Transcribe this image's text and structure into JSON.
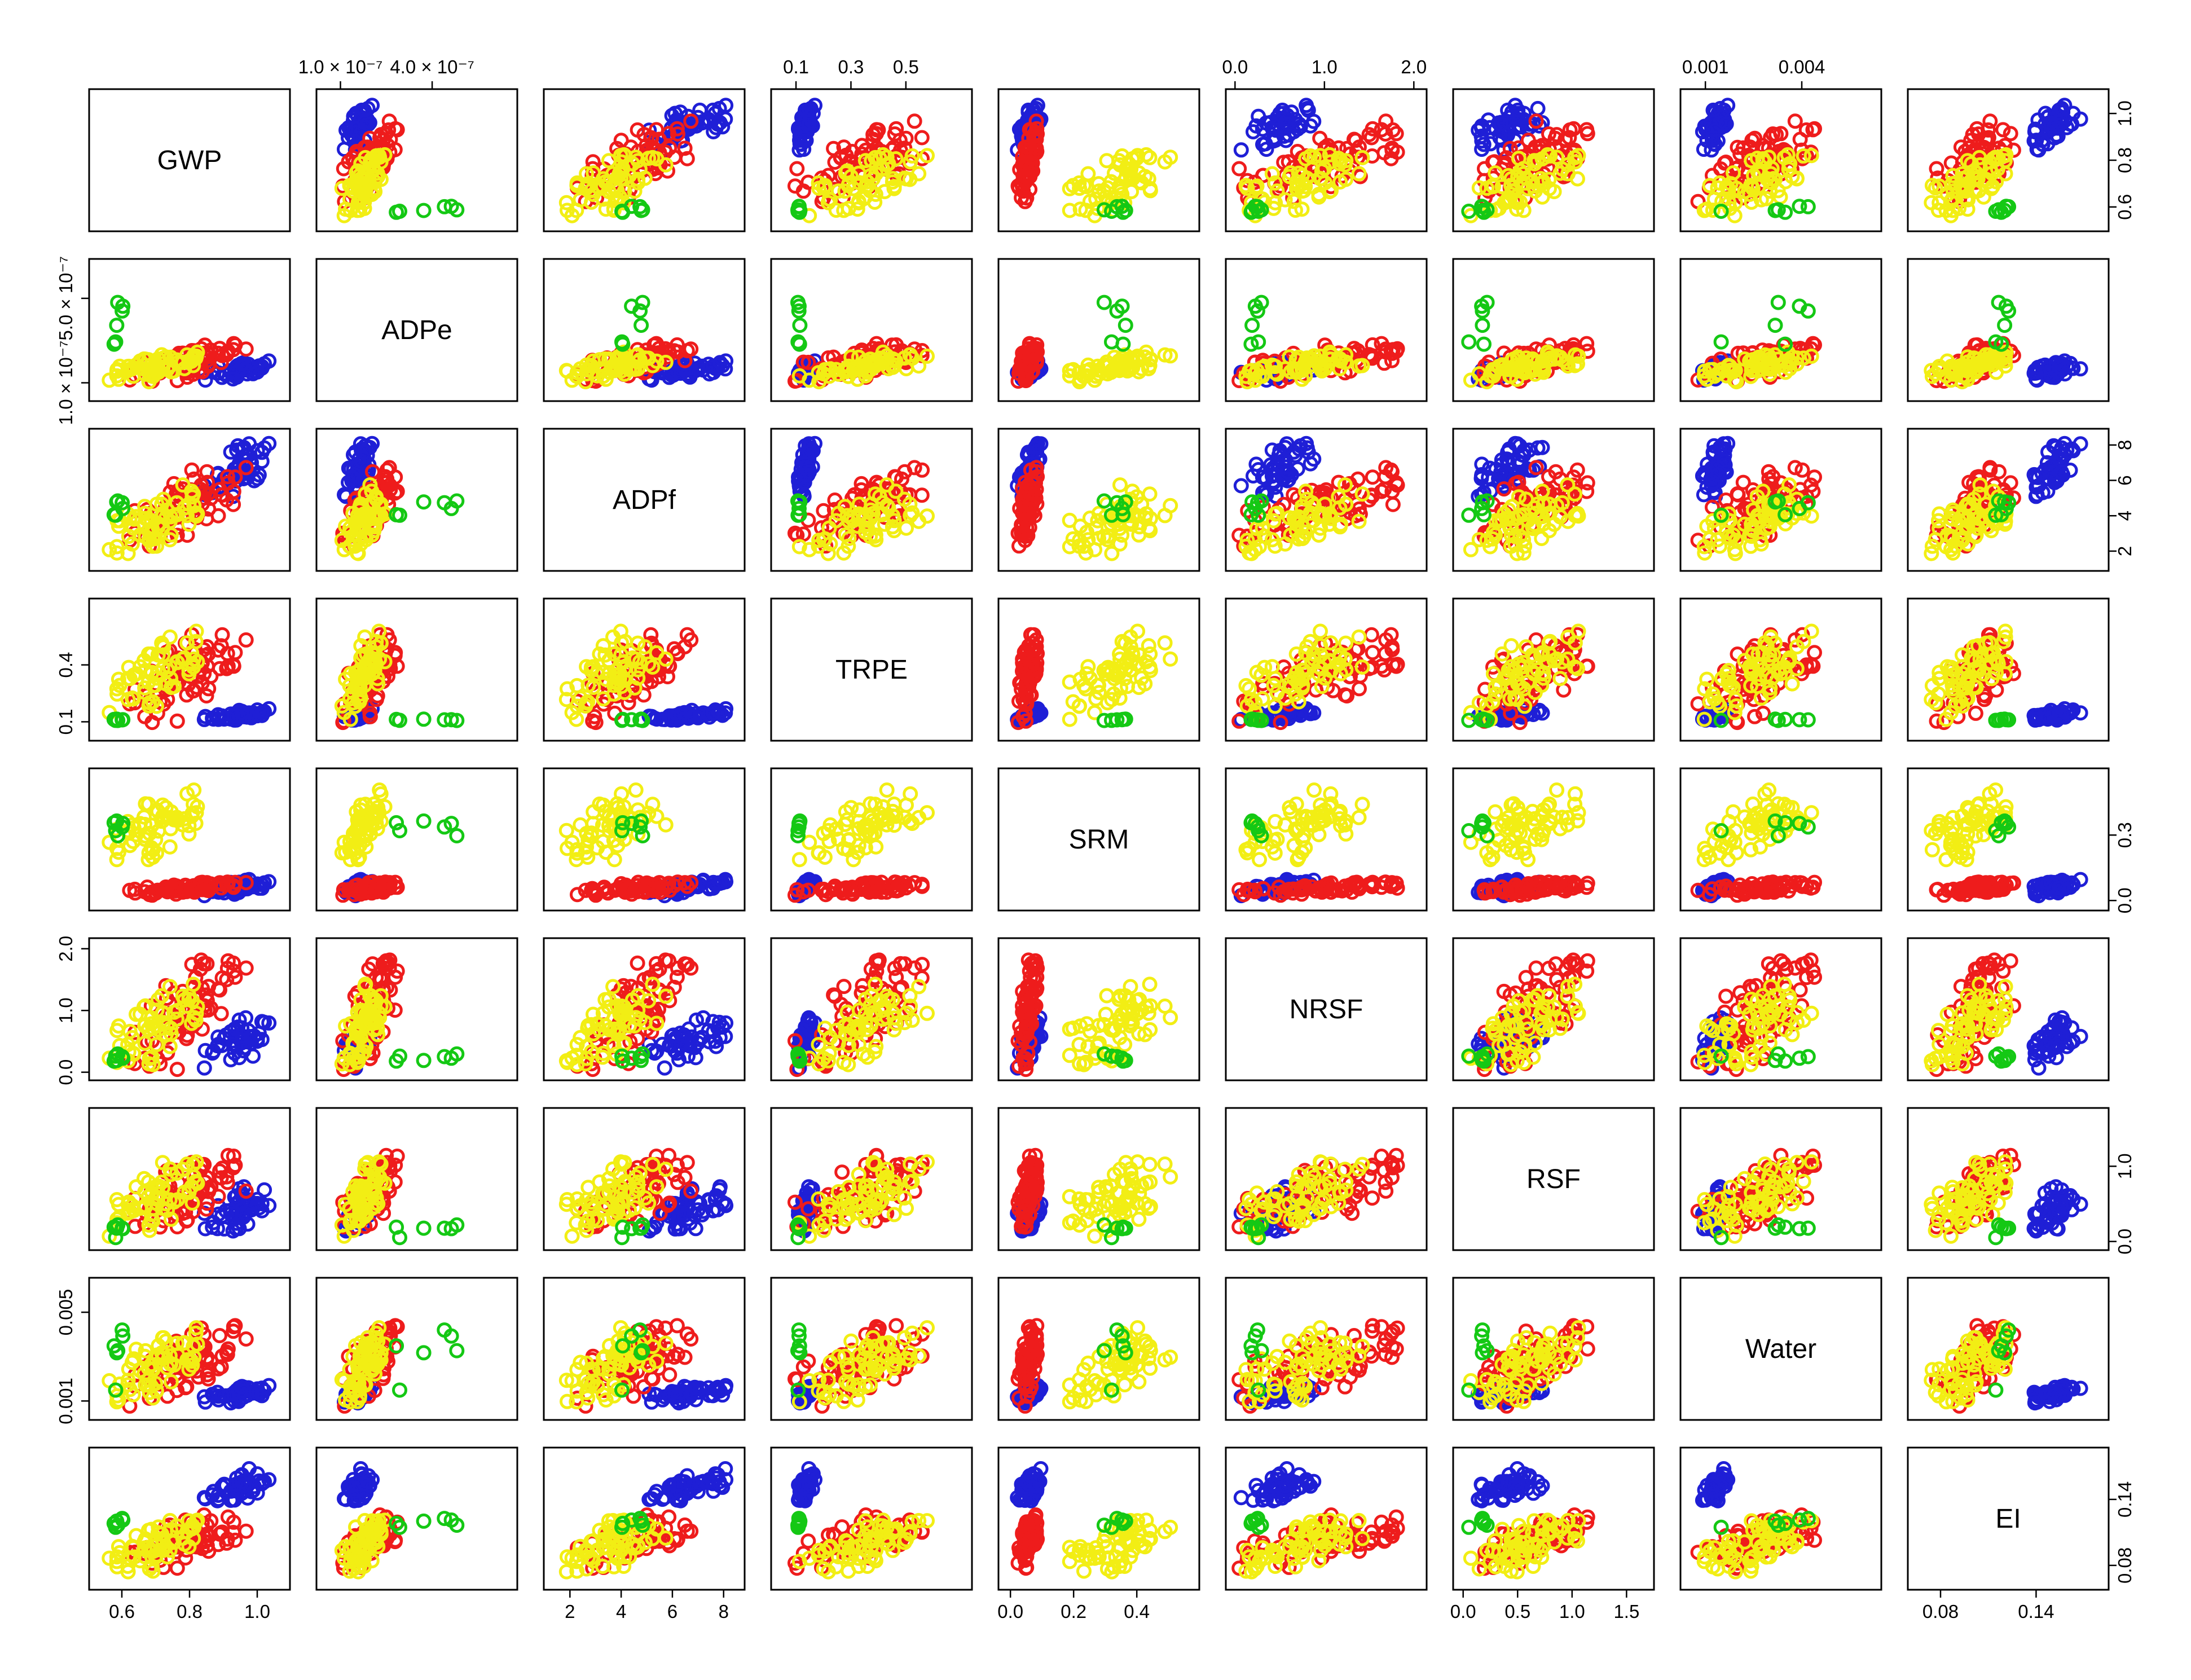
{
  "chart_data": {
    "type": "scatter",
    "variables": [
      "GWP",
      "ADPe",
      "ADPf",
      "TRPE",
      "SRM",
      "NRSF",
      "RSF",
      "Water",
      "EI"
    ],
    "diagonal_labels": [
      "GWP",
      "ADPe",
      "ADPf",
      "TRPE",
      "SRM",
      "NRSF",
      "RSF",
      "Water",
      "EI"
    ],
    "group_colors": {
      "blue": "#1f1fd6",
      "red": "#ee1c1c",
      "yellow": "#f2ee14",
      "green": "#14c814"
    },
    "ranges": {
      "GWP": [
        0.52,
        1.08
      ],
      "ADPe": [
        4e-08,
        6.6e-07
      ],
      "ADPf": [
        1.2,
        8.6
      ],
      "TRPE": [
        0.03,
        0.72
      ],
      "SRM": [
        -0.02,
        0.58
      ],
      "NRSF": [
        -0.04,
        2.08
      ],
      "RSF": [
        -0.04,
        1.7
      ],
      "Water": [
        0.0004,
        0.0063
      ],
      "EI": [
        0.063,
        0.182
      ]
    },
    "axis_ticks": {
      "GWP": [
        {
          "value": 0.6,
          "label": "0.6"
        },
        {
          "value": 0.8,
          "label": "0.8"
        },
        {
          "value": 1.0,
          "label": "1.0"
        }
      ],
      "ADPe_top": [
        {
          "value": 1e-07,
          "label": "1.0 × 10⁻⁷"
        },
        {
          "value": 4e-07,
          "label": "4.0 × 10⁻⁷"
        }
      ],
      "ADPe_left": [
        {
          "value": 1e-07,
          "label": "1.0 × 10⁻⁷"
        },
        {
          "value": 5e-07,
          "label": "5.0 × 10⁻⁷"
        }
      ],
      "ADPf": [
        {
          "value": 2,
          "label": "2"
        },
        {
          "value": 4,
          "label": "4"
        },
        {
          "value": 6,
          "label": "6"
        },
        {
          "value": 8,
          "label": "8"
        }
      ],
      "TRPE_top": [
        {
          "value": 0.1,
          "label": "0.1"
        },
        {
          "value": 0.3,
          "label": "0.3"
        },
        {
          "value": 0.5,
          "label": "0.5"
        }
      ],
      "TRPE_left": [
        {
          "value": 0.1,
          "label": "0.1"
        },
        {
          "value": 0.4,
          "label": "0.4"
        }
      ],
      "SRM_bottom": [
        {
          "value": 0.0,
          "label": "0.0"
        },
        {
          "value": 0.2,
          "label": "0.2"
        },
        {
          "value": 0.4,
          "label": "0.4"
        }
      ],
      "SRM_right": [
        {
          "value": 0.0,
          "label": "0.0"
        },
        {
          "value": 0.3,
          "label": "0.3"
        }
      ],
      "NRSF": [
        {
          "value": 0.0,
          "label": "0.0"
        },
        {
          "value": 1.0,
          "label": "1.0"
        },
        {
          "value": 2.0,
          "label": "2.0"
        }
      ],
      "RSF_bottom": [
        {
          "value": 0.0,
          "label": "0.0"
        },
        {
          "value": 0.5,
          "label": "0.5"
        },
        {
          "value": 1.0,
          "label": "1.0"
        },
        {
          "value": 1.5,
          "label": "1.5"
        }
      ],
      "RSF_right": [
        {
          "value": 0.0,
          "label": "0.0"
        },
        {
          "value": 1.0,
          "label": "1.0"
        }
      ],
      "Water_top": [
        {
          "value": 0.001,
          "label": "0.001"
        },
        {
          "value": 0.004,
          "label": "0.004"
        }
      ],
      "Water_left": [
        {
          "value": 0.001,
          "label": "0.001"
        },
        {
          "value": 0.005,
          "label": "0.005"
        }
      ],
      "EI_bottom": [
        {
          "value": 0.08,
          "label": "0.08"
        },
        {
          "value": 0.14,
          "label": "0.14"
        }
      ],
      "EI_right": [
        {
          "value": 0.08,
          "label": "0.08"
        },
        {
          "value": 0.14,
          "label": "0.14"
        }
      ],
      "GWP_right": [
        {
          "value": 0.6,
          "label": "0.6"
        },
        {
          "value": 0.8,
          "label": "0.8"
        },
        {
          "value": 1.0,
          "label": "1.0"
        }
      ],
      "ADPf_right": [
        {
          "value": 2,
          "label": "2"
        },
        {
          "value": 4,
          "label": "4"
        },
        {
          "value": 6,
          "label": "6"
        },
        {
          "value": 8,
          "label": "8"
        }
      ],
      "ADPf_bottom": [
        {
          "value": 2,
          "label": "2"
        },
        {
          "value": 4,
          "label": "4"
        },
        {
          "value": 6,
          "label": "6"
        },
        {
          "value": 8,
          "label": "8"
        }
      ],
      "NRSF_left": [
        {
          "value": 0.0,
          "label": "0.0"
        },
        {
          "value": 1.0,
          "label": "1.0"
        },
        {
          "value": 2.0,
          "label": "2.0"
        }
      ]
    },
    "axis_layout": {
      "top": [
        {
          "col": 1,
          "var": "ADPe",
          "ticks": "ADPe_top"
        },
        {
          "col": 3,
          "var": "TRPE",
          "ticks": "TRPE_top"
        },
        {
          "col": 5,
          "var": "NRSF",
          "ticks": "NRSF"
        },
        {
          "col": 7,
          "var": "Water",
          "ticks": "Water_top"
        }
      ],
      "bottom": [
        {
          "col": 0,
          "var": "GWP",
          "ticks": "GWP"
        },
        {
          "col": 2,
          "var": "ADPf",
          "ticks": "ADPf_bottom"
        },
        {
          "col": 4,
          "var": "SRM",
          "ticks": "SRM_bottom"
        },
        {
          "col": 6,
          "var": "RSF",
          "ticks": "RSF_bottom"
        },
        {
          "col": 8,
          "var": "EI",
          "ticks": "EI_bottom"
        }
      ],
      "left": [
        {
          "row": 1,
          "var": "ADPe",
          "ticks": "ADPe_left"
        },
        {
          "row": 3,
          "var": "TRPE",
          "ticks": "TRPE_left"
        },
        {
          "row": 5,
          "var": "NRSF",
          "ticks": "NRSF_left"
        },
        {
          "row": 7,
          "var": "Water",
          "ticks": "Water_left"
        }
      ],
      "right": [
        {
          "row": 0,
          "var": "GWP",
          "ticks": "GWP_right"
        },
        {
          "row": 2,
          "var": "ADPf",
          "ticks": "ADPf_right"
        },
        {
          "row": 4,
          "var": "SRM",
          "ticks": "SRM_right"
        },
        {
          "row": 6,
          "var": "RSF",
          "ticks": "RSF_right"
        },
        {
          "row": 8,
          "var": "EI",
          "ticks": "EI_right"
        }
      ]
    },
    "series": [
      {
        "color": "blue",
        "n": 50,
        "values": {
          "GWP": [
            0.82,
            1.06
          ],
          "ADPe": [
            1e-07,
            2.2e-07
          ],
          "ADPf": [
            4.8,
            8.4
          ],
          "TRPE": [
            0.1,
            0.17
          ],
          "SRM": [
            0.02,
            0.1
          ],
          "NRSF": [
            0.0,
            0.95
          ],
          "RSF": [
            0.0,
            0.8
          ],
          "Water": [
            0.0008,
            0.0018
          ],
          "EI": [
            0.13,
            0.17
          ]
        }
      },
      {
        "color": "red",
        "n": 70,
        "values": {
          "GWP": [
            0.6,
            0.98
          ],
          "ADPe": [
            1e-07,
            3e-07
          ],
          "ADPf": [
            2.2,
            7.0
          ],
          "TRPE": [
            0.08,
            0.6
          ],
          "SRM": [
            0.02,
            0.09
          ],
          "NRSF": [
            0.0,
            1.9
          ],
          "RSF": [
            0.0,
            1.2
          ],
          "Water": [
            0.0006,
            0.0048
          ],
          "EI": [
            0.075,
            0.13
          ]
        }
      },
      {
        "color": "yellow",
        "n": 60,
        "values": {
          "GWP": [
            0.56,
            0.85
          ],
          "ADPe": [
            1e-07,
            2.5e-07
          ],
          "ADPf": [
            1.5,
            6.0
          ],
          "TRPE": [
            0.08,
            0.6
          ],
          "SRM": [
            0.15,
            0.52
          ],
          "NRSF": [
            0.0,
            1.5
          ],
          "RSF": [
            0.0,
            1.1
          ],
          "Water": [
            0.0006,
            0.0045
          ],
          "EI": [
            0.07,
            0.13
          ]
        }
      },
      {
        "color": "green",
        "n": 6,
        "values": {
          "GWP": [
            0.56,
            0.62
          ],
          "ADPe": [
            1e-07,
            6e-07
          ],
          "ADPf": [
            3.0,
            5.5
          ],
          "TRPE": [
            0.1,
            0.12
          ],
          "SRM": [
            0.2,
            0.45
          ],
          "NRSF": [
            0.0,
            0.5
          ],
          "RSF": [
            0.0,
            0.3
          ],
          "Water": [
            0.0006,
            0.005
          ],
          "EI": [
            0.1,
            0.13
          ]
        }
      }
    ]
  }
}
